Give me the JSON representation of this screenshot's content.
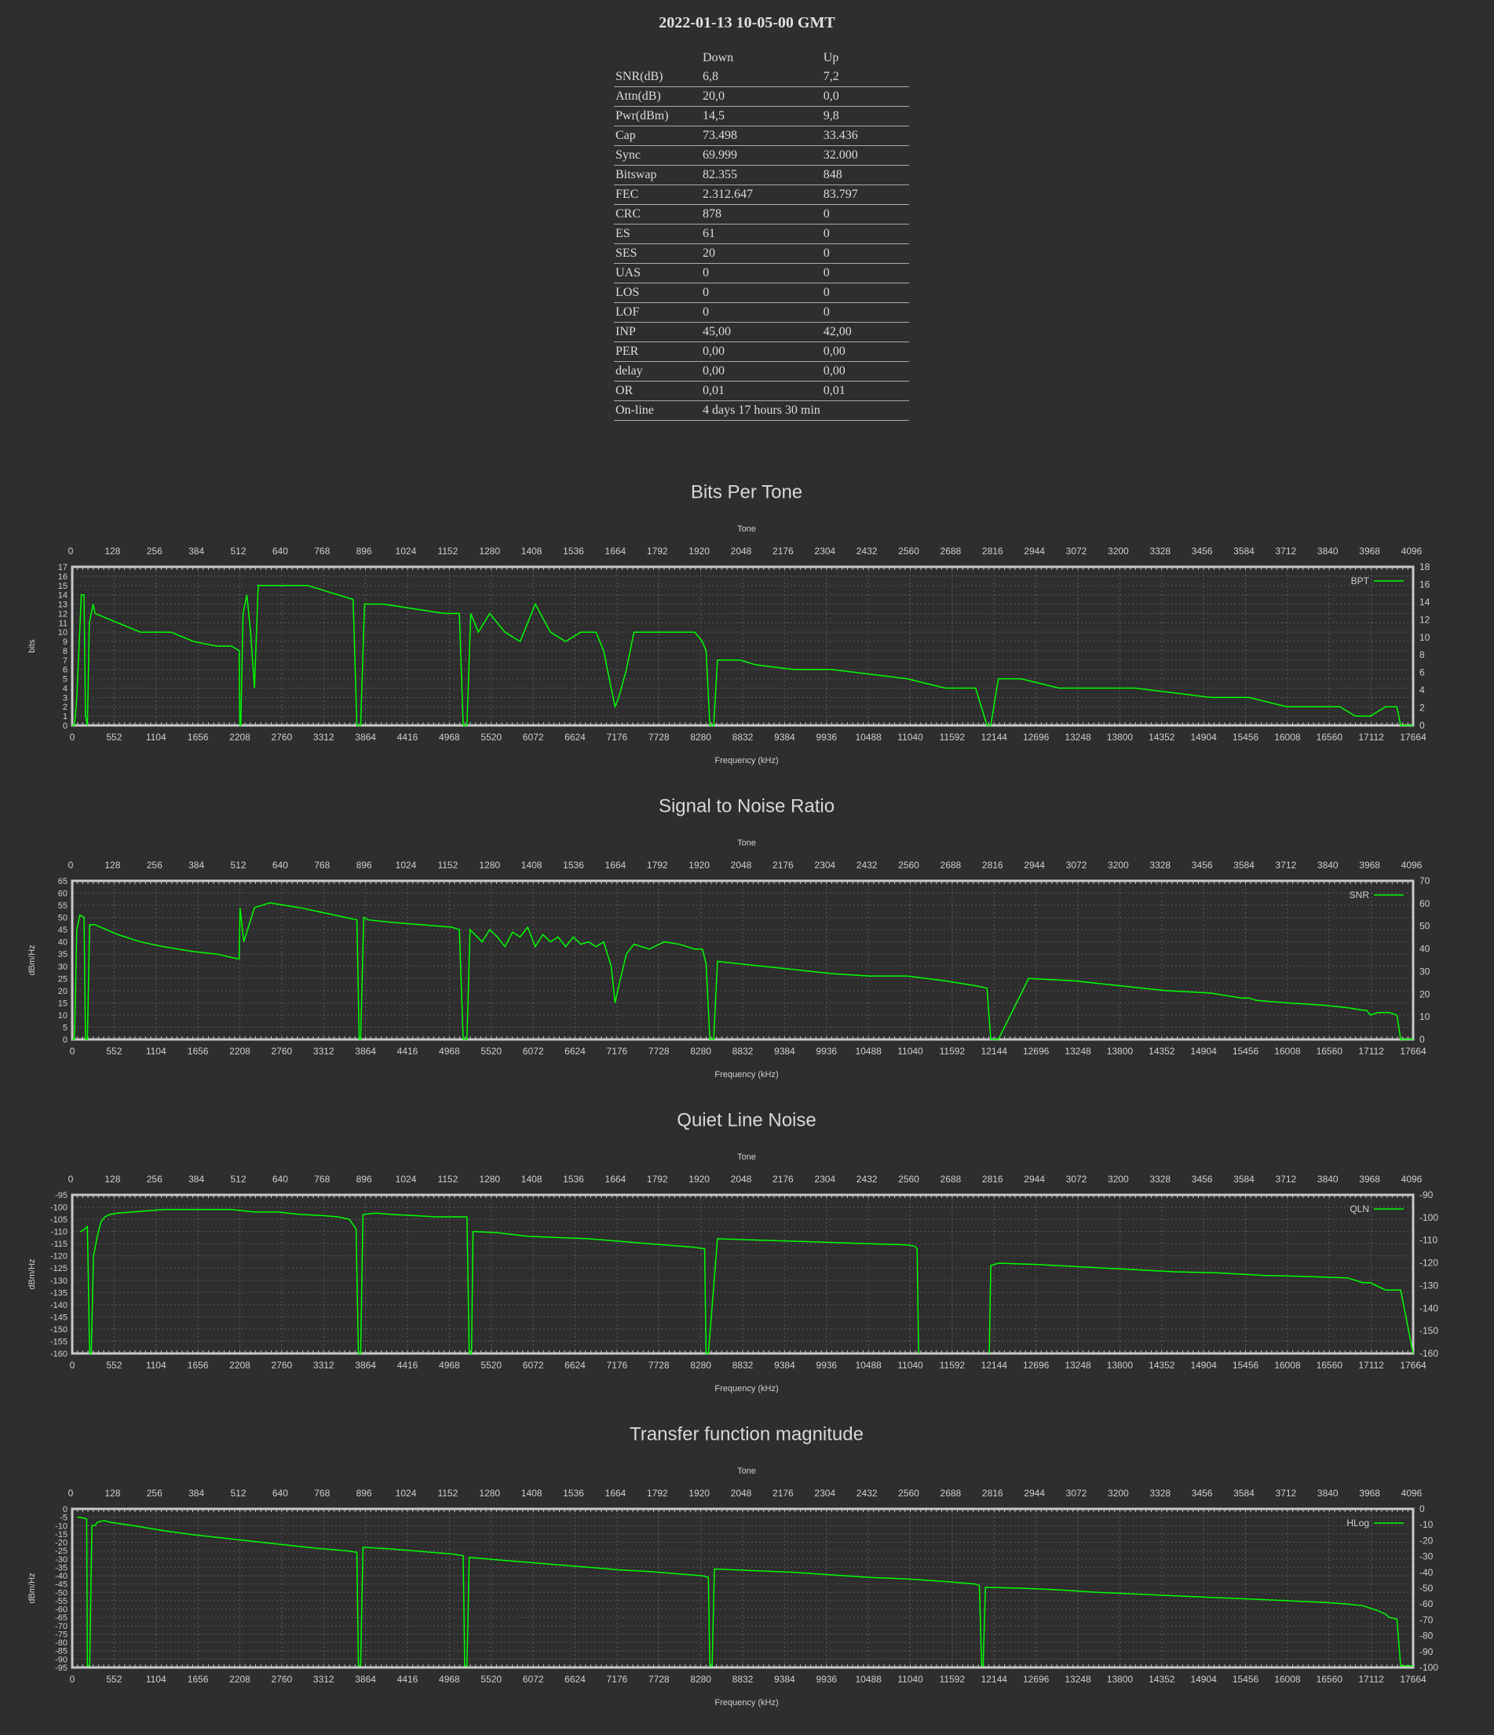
{
  "header": {
    "date": "2022-01-13 10-05-00 GMT"
  },
  "stats_table": {
    "headers": [
      "",
      "Down",
      "Up"
    ],
    "rows": [
      [
        "SNR(dB)",
        "6,8",
        "7,2"
      ],
      [
        "Attn(dB)",
        "20,0",
        "0,0"
      ],
      [
        "Pwr(dBm)",
        "14,5",
        "9,8"
      ],
      [
        "Cap",
        "73.498",
        "33.436"
      ],
      [
        "Sync",
        "69.999",
        "32.000"
      ],
      [
        "Bitswap",
        "82.355",
        "848"
      ],
      [
        "FEC",
        "2.312.647",
        "83.797"
      ],
      [
        "CRC",
        "878",
        "0"
      ],
      [
        "ES",
        "61",
        "0"
      ],
      [
        "SES",
        "20",
        "0"
      ],
      [
        "UAS",
        "0",
        "0"
      ],
      [
        "LOS",
        "0",
        "0"
      ],
      [
        "LOF",
        "0",
        "0"
      ],
      [
        "INP",
        "45,00",
        "42,00"
      ],
      [
        "PER",
        "0,00",
        "0,00"
      ],
      [
        "delay",
        "0,00",
        "0,00"
      ],
      [
        "OR",
        "0,01",
        "0,01"
      ],
      [
        "On-line",
        "4 days 17 hours 30 min",
        ""
      ]
    ]
  },
  "colors": {
    "background": "#2e2e2e",
    "line": "#00ff00",
    "grid": "#5a5a5a",
    "axis": "#c8c8c8",
    "text": "#cfcfcf"
  },
  "chart_data": [
    {
      "id": "bpt",
      "type": "line",
      "title": "Bits Per Tone",
      "xlabel": "Frequency (kHz)",
      "x2label": "Tone",
      "ylabel": "bits",
      "legend": "BPT",
      "legend_position": "top-right",
      "grid": true,
      "xlim": [
        0,
        17664
      ],
      "x_ticks": [
        "0",
        "552",
        "1104",
        "1656",
        "2208",
        "2760",
        "3312",
        "3864",
        "4416",
        "4968",
        "5520",
        "6072",
        "6624",
        "7176",
        "7728",
        "8280",
        "8832",
        "9384",
        "9936",
        "10488",
        "11040",
        "11592",
        "12144",
        "12696",
        "13248",
        "13800",
        "14352",
        "14904",
        "15456",
        "16008",
        "16560",
        "17112",
        "17664"
      ],
      "x2_ticks": [
        "0",
        "128",
        "256",
        "384",
        "512",
        "640",
        "768",
        "896",
        "1024",
        "1152",
        "1280",
        "1408",
        "1536",
        "1664",
        "1792",
        "1920",
        "2048",
        "2176",
        "2304",
        "2432",
        "2560",
        "2688",
        "2816",
        "2944",
        "3072",
        "3200",
        "3328",
        "3456",
        "3584",
        "3712",
        "3840",
        "3968",
        "4096"
      ],
      "ylim": [
        0,
        17
      ],
      "y_ticks": [
        "0",
        "1",
        "2",
        "3",
        "4",
        "5",
        "6",
        "7",
        "8",
        "9",
        "10",
        "11",
        "12",
        "13",
        "14",
        "15",
        "16",
        "17"
      ],
      "y2lim": [
        0,
        18
      ],
      "y2_ticks": [
        "0",
        "2",
        "4",
        "6",
        "8",
        "10",
        "12",
        "14",
        "16",
        "18"
      ],
      "x": [
        0,
        30,
        60,
        120,
        155,
        175,
        200,
        225,
        250,
        276,
        300,
        600,
        900,
        1200,
        1300,
        1600,
        1900,
        2100,
        2200,
        2208,
        2220,
        2250,
        2300,
        2350,
        2400,
        2450,
        2500,
        2550,
        2600,
        2700,
        2900,
        3100,
        3300,
        3500,
        3700,
        3750,
        3800,
        3850,
        3900,
        4100,
        4500,
        4900,
        5100,
        5150,
        5200,
        5250,
        5300,
        5350,
        5500,
        5700,
        5900,
        6100,
        6300,
        6500,
        6700,
        6900,
        7000,
        7100,
        7150,
        7200,
        7300,
        7400,
        7500,
        7800,
        8000,
        8200,
        8300,
        8350,
        8400,
        8450,
        8500,
        8600,
        8800,
        9000,
        9500,
        10000,
        10500,
        11000,
        11500,
        11900,
        12050,
        12100,
        12200,
        12500,
        13000,
        13500,
        14000,
        14500,
        15000,
        15500,
        16000,
        16500,
        16700,
        16900,
        17000,
        17100,
        17300,
        17450,
        17500,
        17664
      ],
      "y": [
        0,
        0,
        3,
        14,
        14,
        1,
        0,
        11,
        12,
        13,
        12,
        11,
        10,
        10,
        10,
        9,
        8.5,
        8.5,
        8,
        0,
        0,
        12,
        14,
        10,
        4,
        15,
        15,
        15,
        15,
        15,
        15,
        15,
        14.5,
        14,
        13.5,
        0,
        0,
        13,
        13,
        13,
        12.5,
        12,
        12,
        0,
        0,
        12,
        11,
        10,
        12,
        10,
        9,
        13,
        10,
        9,
        10,
        10,
        8,
        4,
        2,
        3,
        6,
        10,
        10,
        10,
        10,
        10,
        9,
        8,
        0,
        0,
        7,
        7,
        7,
        6.5,
        6,
        6,
        5.5,
        5,
        4,
        4,
        0,
        0,
        5,
        5,
        4,
        4,
        4,
        3.5,
        3,
        3,
        2,
        2,
        2,
        1,
        1,
        1,
        2,
        2,
        0,
        0
      ]
    },
    {
      "id": "snr",
      "type": "line",
      "title": "Signal to Noise Ratio",
      "xlabel": "Frequency (kHz)",
      "x2label": "Tone",
      "ylabel": "dBm/Hz",
      "legend": "SNR",
      "legend_position": "top-right",
      "grid": true,
      "xlim": [
        0,
        17664
      ],
      "x_ticks": [
        "0",
        "552",
        "1104",
        "1656",
        "2208",
        "2760",
        "3312",
        "3864",
        "4416",
        "4968",
        "5520",
        "6072",
        "6624",
        "7176",
        "7728",
        "8280",
        "8832",
        "9384",
        "9936",
        "10488",
        "11040",
        "11592",
        "12144",
        "12696",
        "13248",
        "13800",
        "14352",
        "14904",
        "15456",
        "16008",
        "16560",
        "17112",
        "17664"
      ],
      "x2_ticks": [
        "0",
        "128",
        "256",
        "384",
        "512",
        "640",
        "768",
        "896",
        "1024",
        "1152",
        "1280",
        "1408",
        "1536",
        "1664",
        "1792",
        "1920",
        "2048",
        "2176",
        "2304",
        "2432",
        "2560",
        "2688",
        "2816",
        "2944",
        "3072",
        "3200",
        "3328",
        "3456",
        "3584",
        "3712",
        "3840",
        "3968",
        "4096"
      ],
      "ylim": [
        0,
        65
      ],
      "y_ticks": [
        "0",
        "5",
        "10",
        "15",
        "20",
        "25",
        "30",
        "35",
        "40",
        "45",
        "50",
        "55",
        "60",
        "65"
      ],
      "y2lim": [
        0,
        70
      ],
      "y2_ticks": [
        "0",
        "10",
        "20",
        "30",
        "40",
        "50",
        "60",
        "70"
      ],
      "x": [
        0,
        30,
        60,
        100,
        155,
        175,
        200,
        230,
        300,
        600,
        900,
        1200,
        1600,
        1900,
        2180,
        2200,
        2210,
        2260,
        2400,
        2600,
        2800,
        3000,
        3300,
        3600,
        3750,
        3780,
        3800,
        3840,
        3900,
        4200,
        4600,
        5000,
        5100,
        5150,
        5200,
        5240,
        5400,
        5500,
        5600,
        5700,
        5800,
        5900,
        6000,
        6100,
        6200,
        6300,
        6400,
        6500,
        6600,
        6700,
        6800,
        6900,
        7000,
        7100,
        7150,
        7200,
        7300,
        7400,
        7600,
        7800,
        8000,
        8200,
        8300,
        8350,
        8400,
        8450,
        8500,
        8800,
        9400,
        10000,
        10500,
        11000,
        11500,
        11900,
        12050,
        12100,
        12200,
        12600,
        13200,
        13800,
        14400,
        15000,
        15400,
        15500,
        15600,
        16000,
        16500,
        16800,
        17000,
        17050,
        17100,
        17200,
        17350,
        17450,
        17500,
        17664
      ],
      "y": [
        0,
        0,
        45,
        51,
        50,
        0,
        0,
        47,
        47,
        43,
        40,
        38,
        36,
        35,
        33,
        33,
        54,
        40,
        54,
        56,
        55,
        54,
        52,
        50,
        49,
        0,
        0,
        50,
        49,
        48,
        47,
        46,
        45,
        0,
        0,
        45,
        40,
        45,
        42,
        38,
        44,
        42,
        46,
        38,
        43,
        40,
        42,
        38,
        42,
        39,
        40,
        38,
        40,
        30,
        15,
        22,
        35,
        39,
        37,
        40,
        39,
        37,
        37,
        31,
        0,
        0,
        32,
        31,
        29,
        27,
        26,
        26,
        24,
        22,
        21,
        0,
        0,
        25,
        24,
        22,
        20,
        19,
        17,
        17,
        16,
        15,
        14,
        13,
        12,
        12,
        10,
        11,
        11,
        10,
        0,
        0
      ]
    },
    {
      "id": "qln",
      "type": "line",
      "title": "Quiet Line Noise",
      "xlabel": "Frequency (kHz)",
      "x2label": "Tone",
      "ylabel": "dBm/Hz",
      "legend": "QLN",
      "legend_position": "top-right",
      "grid": true,
      "xlim": [
        0,
        17664
      ],
      "x_ticks": [
        "0",
        "552",
        "1104",
        "1656",
        "2208",
        "2760",
        "3312",
        "3864",
        "4416",
        "4968",
        "5520",
        "6072",
        "6624",
        "7176",
        "7728",
        "8280",
        "8832",
        "9384",
        "9936",
        "10488",
        "11040",
        "11592",
        "12144",
        "12696",
        "13248",
        "13800",
        "14352",
        "14904",
        "15456",
        "16008",
        "16560",
        "17112",
        "17664"
      ],
      "x2_ticks": [
        "0",
        "128",
        "256",
        "384",
        "512",
        "640",
        "768",
        "896",
        "1024",
        "1152",
        "1280",
        "1408",
        "1536",
        "1664",
        "1792",
        "1920",
        "2048",
        "2176",
        "2304",
        "2432",
        "2560",
        "2688",
        "2816",
        "2944",
        "3072",
        "3200",
        "3328",
        "3456",
        "3584",
        "3712",
        "3840",
        "3968",
        "4096"
      ],
      "ylim": [
        -160,
        -95
      ],
      "y_ticks": [
        "-160",
        "-155",
        "-150",
        "-145",
        "-140",
        "-135",
        "-130",
        "-125",
        "-120",
        "-115",
        "-110",
        "-105",
        "-100",
        "-95"
      ],
      "y2lim": [
        -160,
        -90
      ],
      "y2_ticks": [
        "-160",
        "-150",
        "-140",
        "-130",
        "-120",
        "-110",
        "-100",
        "-90"
      ],
      "x": [
        0,
        100,
        120,
        200,
        230,
        250,
        280,
        330,
        380,
        430,
        500,
        600,
        800,
        1000,
        1200,
        1500,
        1800,
        2100,
        2400,
        2700,
        3000,
        3300,
        3500,
        3650,
        3740,
        3770,
        3800,
        3830,
        4000,
        4200,
        4500,
        4800,
        5100,
        5200,
        5230,
        5260,
        5280,
        5600,
        6000,
        6400,
        6800,
        7200,
        7600,
        8000,
        8200,
        8300,
        8330,
        8350,
        8380,
        8500,
        9000,
        9500,
        10000,
        10500,
        11000,
        11100,
        11130,
        11150,
        12000,
        12080,
        12100,
        12200,
        12700,
        13300,
        13900,
        14500,
        15100,
        15700,
        16300,
        16800,
        17000,
        17100,
        17300,
        17450,
        17500,
        17664
      ],
      "y": [
        null,
        -110,
        -110,
        -108,
        -160,
        -160,
        -120,
        -112,
        -106,
        -104,
        -103,
        -102.5,
        -102,
        -101.5,
        -101,
        -101,
        -101,
        -101,
        -102,
        -102,
        -103,
        -103.5,
        -104,
        -105,
        -109,
        -160,
        -160,
        -103,
        -102.5,
        -103,
        -103.5,
        -104,
        -104,
        -104,
        -160,
        -160,
        -110,
        -110.5,
        -112,
        -112.5,
        -113,
        -114,
        -115,
        -116,
        -116.5,
        -117,
        -117,
        -160,
        -160,
        -113,
        -113.5,
        -114,
        -114.5,
        -115,
        -115.5,
        -116,
        -117,
        -160,
        null,
        -160,
        -124,
        -123,
        -123.5,
        -124.5,
        -125.5,
        -126.5,
        -127,
        -128,
        -128.5,
        -129,
        -131,
        -131,
        -134,
        -134,
        -134,
        -160
      ]
    },
    {
      "id": "hlog",
      "type": "line",
      "title": "Transfer function magnitude",
      "xlabel": "Frequency (kHz)",
      "x2label": "Tone",
      "ylabel": "dBm/Hz",
      "legend": "HLog",
      "legend_position": "top-right",
      "grid": true,
      "xlim": [
        0,
        17664
      ],
      "x_ticks": [
        "0",
        "552",
        "1104",
        "1656",
        "2208",
        "2760",
        "3312",
        "3864",
        "4416",
        "4968",
        "5520",
        "6072",
        "6624",
        "7176",
        "7728",
        "8280",
        "8832",
        "9384",
        "9936",
        "10488",
        "11040",
        "11592",
        "12144",
        "12696",
        "13248",
        "13800",
        "14352",
        "14904",
        "15456",
        "16008",
        "16560",
        "17112",
        "17664"
      ],
      "x2_ticks": [
        "0",
        "128",
        "256",
        "384",
        "512",
        "640",
        "768",
        "896",
        "1024",
        "1152",
        "1280",
        "1408",
        "1536",
        "1664",
        "1792",
        "1920",
        "2048",
        "2176",
        "2304",
        "2432",
        "2560",
        "2688",
        "2816",
        "2944",
        "3072",
        "3200",
        "3328",
        "3456",
        "3584",
        "3712",
        "3840",
        "3968",
        "4096"
      ],
      "ylim": [
        -95,
        0
      ],
      "y_ticks": [
        "-95",
        "-90",
        "-85",
        "-80",
        "-75",
        "-70",
        "-65",
        "-60",
        "-55",
        "-50",
        "-45",
        "-40",
        "-35",
        "-30",
        "-25",
        "-20",
        "-15",
        "-10",
        "-5",
        "0"
      ],
      "y2lim": [
        -100,
        0
      ],
      "y2_ticks": [
        "-100",
        "-90",
        "-80",
        "-70",
        "-60",
        "-50",
        "-40",
        "-30",
        "-20",
        "-10",
        "0"
      ],
      "x": [
        0,
        70,
        100,
        190,
        200,
        230,
        260,
        300,
        330,
        420,
        500,
        800,
        1200,
        1600,
        2000,
        2400,
        2800,
        3200,
        3600,
        3750,
        3770,
        3800,
        3830,
        4200,
        4600,
        5000,
        5150,
        5170,
        5200,
        5230,
        5600,
        6000,
        6400,
        6800,
        7200,
        7600,
        8000,
        8300,
        8380,
        8400,
        8430,
        8460,
        9000,
        9500,
        10000,
        10500,
        11000,
        11500,
        11900,
        11950,
        11980,
        12000,
        12030,
        12500,
        13000,
        13500,
        14000,
        14500,
        15000,
        15500,
        16000,
        16500,
        16800,
        17000,
        17100,
        17200,
        17300,
        17350,
        17450,
        17500,
        17664
      ],
      "y": [
        null,
        -5,
        -5,
        -6,
        -94,
        -94,
        -10,
        -10,
        -8,
        -7,
        -8,
        -10,
        -13,
        -15.5,
        -17.5,
        -19.5,
        -21.5,
        -23.5,
        -25,
        -26,
        -94,
        -94,
        -23,
        -24,
        -25.5,
        -27,
        -28,
        -94,
        -94,
        -29,
        -30.5,
        -32,
        -33.5,
        -35,
        -36.5,
        -37.5,
        -39,
        -40,
        -41,
        -94,
        -94,
        -36,
        -37,
        -38,
        -39.5,
        -41,
        -42,
        -43.5,
        -45,
        -46,
        -94,
        -94,
        -47,
        -47.5,
        -48.5,
        -50,
        -51,
        -52,
        -53,
        -54,
        -55,
        -56,
        -57,
        -58,
        -59.5,
        -61,
        -63,
        -65,
        -66,
        -94,
        -94
      ]
    }
  ]
}
